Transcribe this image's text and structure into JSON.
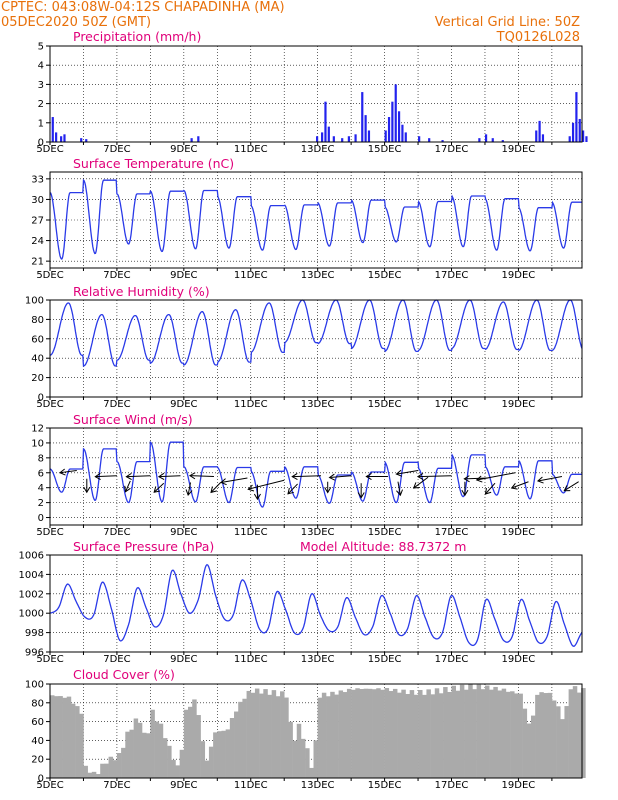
{
  "header": {
    "left_line1": "CPTEC:   043:08W-04:12S   CHAPADINHA (MA)",
    "left_line2": "05DEC2020 50Z (GMT)",
    "right_line1": "Vertical Grid Line: 50Z",
    "right_line2": "TQ0126L028"
  },
  "colors": {
    "header": "#e8700a",
    "title": "#e0007a",
    "series": "#2a3ae8",
    "bars": "#2222ee",
    "cloud": "#aaaaaa"
  },
  "chart_data": [
    {
      "type": "bar",
      "title": "Precipitation (mm/h)",
      "x": [
        "5DEC",
        "7DEC",
        "9DEC",
        "11DEC",
        "13DEC",
        "15DEC",
        "17DEC",
        "19DEC"
      ],
      "ylim": [
        0,
        5
      ],
      "yticks": [
        0,
        1,
        2,
        3,
        4,
        5
      ],
      "bars": [
        [
          0.05,
          1.3
        ],
        [
          0.15,
          0.5
        ],
        [
          0.3,
          0.3
        ],
        [
          0.4,
          0.4
        ],
        [
          0.9,
          0.2
        ],
        [
          1.05,
          0.15
        ],
        [
          4.2,
          0.2
        ],
        [
          4.4,
          0.3
        ],
        [
          7.95,
          0.3
        ],
        [
          8.1,
          0.5
        ],
        [
          8.2,
          2.1
        ],
        [
          8.3,
          0.8
        ],
        [
          8.45,
          0.3
        ],
        [
          8.7,
          0.2
        ],
        [
          8.9,
          0.3
        ],
        [
          9.1,
          0.4
        ],
        [
          9.3,
          2.6
        ],
        [
          9.4,
          1.4
        ],
        [
          9.5,
          0.6
        ],
        [
          10.0,
          0.6
        ],
        [
          10.1,
          1.3
        ],
        [
          10.2,
          2.1
        ],
        [
          10.3,
          3.0
        ],
        [
          10.4,
          1.6
        ],
        [
          10.5,
          0.9
        ],
        [
          10.6,
          0.5
        ],
        [
          11.0,
          0.3
        ],
        [
          11.3,
          0.2
        ],
        [
          11.7,
          0.1
        ],
        [
          12.8,
          0.2
        ],
        [
          13.0,
          0.4
        ],
        [
          13.2,
          0.2
        ],
        [
          13.5,
          0.1
        ],
        [
          14.5,
          0.6
        ],
        [
          14.6,
          1.1
        ],
        [
          14.7,
          0.4
        ],
        [
          15.5,
          0.3
        ],
        [
          15.6,
          1.0
        ],
        [
          15.7,
          2.6
        ],
        [
          15.8,
          1.2
        ],
        [
          15.9,
          0.6
        ],
        [
          16.0,
          0.3
        ]
      ]
    },
    {
      "type": "line",
      "title": "Surface Temperature (nC)",
      "x": [
        "5DEC",
        "7DEC",
        "9DEC",
        "11DEC",
        "13DEC",
        "15DEC",
        "17DEC",
        "19DEC"
      ],
      "ylim": [
        20,
        34
      ],
      "yticks": [
        21,
        24,
        27,
        30,
        33
      ],
      "min": [
        21.3,
        22.1,
        23.5,
        22.4,
        22.8,
        22.9,
        22.6,
        22.7,
        23.2,
        23.7,
        23.8,
        23.1,
        23.1,
        22.6,
        22.5,
        22.9
      ],
      "max": [
        31.0,
        32.8,
        30.8,
        31.2,
        31.3,
        30.4,
        29.1,
        29.2,
        29.5,
        29.9,
        28.9,
        29.7,
        30.5,
        30.1,
        28.8,
        29.6
      ]
    },
    {
      "type": "line",
      "title": "Relative Humidity (%)",
      "x": [
        "5DEC",
        "7DEC",
        "9DEC",
        "11DEC",
        "13DEC",
        "15DEC",
        "17DEC",
        "19DEC"
      ],
      "ylim": [
        0,
        100
      ],
      "yticks": [
        0,
        20,
        40,
        60,
        80,
        100
      ],
      "min": [
        43,
        32,
        38,
        35,
        33,
        36,
        46,
        56,
        55,
        50,
        47,
        48,
        50,
        49,
        48
      ],
      "max": [
        97,
        85,
        84,
        85,
        88,
        90,
        97,
        100,
        100,
        100,
        100,
        100,
        100,
        98,
        100
      ]
    },
    {
      "type": "line",
      "title": "Surface Wind (m/s)",
      "x": [
        "5DEC",
        "7DEC",
        "9DEC",
        "11DEC",
        "13DEC",
        "15DEC",
        "17DEC",
        "19DEC"
      ],
      "ylim": [
        -1,
        12
      ],
      "yticks": [
        0,
        2,
        4,
        6,
        8,
        10,
        12
      ],
      "min": [
        3.4,
        2.3,
        2.0,
        2.1,
        2.1,
        2.0,
        1.4,
        2.6,
        1.9,
        2.2,
        2.0,
        2.0,
        2.8,
        3.0,
        2.5,
        3.3
      ],
      "max": [
        6.5,
        9.2,
        7.5,
        10.1,
        6.8,
        6.7,
        6.2,
        6.8,
        5.7,
        6.1,
        7.4,
        6.6,
        8.4,
        6.8,
        7.6,
        5.8
      ],
      "vectors": [
        [
          0.8,
          6.3,
          -0.35,
          -0.12
        ],
        [
          1.1,
          5.2,
          0.0,
          -0.75
        ],
        [
          2.0,
          5.6,
          -0.45,
          -0.05
        ],
        [
          2.4,
          4.9,
          -0.1,
          -0.6
        ],
        [
          3.0,
          5.6,
          -0.5,
          -0.05
        ],
        [
          3.4,
          4.6,
          -0.2,
          -0.5
        ],
        [
          3.9,
          5.6,
          -0.45,
          -0.05
        ],
        [
          4.2,
          4.7,
          -0.05,
          -0.7
        ],
        [
          4.9,
          5.5,
          -0.5,
          0.05
        ],
        [
          5.1,
          4.7,
          -0.2,
          -0.55
        ],
        [
          5.9,
          5.3,
          -0.55,
          -0.25
        ],
        [
          6.2,
          4.4,
          0.0,
          -0.8
        ],
        [
          7.0,
          5.0,
          -0.75,
          -0.5
        ],
        [
          7.4,
          4.5,
          -0.2,
          -0.55
        ],
        [
          8.1,
          5.6,
          -0.6,
          -0.05
        ],
        [
          8.3,
          4.8,
          0.0,
          -0.6
        ],
        [
          9.0,
          5.6,
          -0.45,
          -0.1
        ],
        [
          9.3,
          4.6,
          0.0,
          -0.8
        ],
        [
          10.1,
          5.5,
          -0.45,
          0.0
        ],
        [
          10.4,
          4.8,
          0.05,
          -0.75
        ],
        [
          11.0,
          6.3,
          -0.45,
          -0.2
        ],
        [
          11.3,
          5.4,
          -0.3,
          -0.6
        ],
        [
          12.0,
          5.6,
          -0.7,
          -0.05
        ],
        [
          12.4,
          4.8,
          0.0,
          -0.75
        ],
        [
          13.1,
          5.3,
          -0.5,
          -0.05
        ],
        [
          13.3,
          4.6,
          -0.2,
          -0.6
        ],
        [
          13.9,
          6.0,
          -0.8,
          -0.4
        ],
        [
          14.3,
          4.8,
          -0.35,
          -0.35
        ],
        [
          15.3,
          5.5,
          -0.5,
          -0.25
        ],
        [
          15.8,
          4.8,
          -0.3,
          -0.5
        ]
      ]
    },
    {
      "type": "line",
      "title": "Surface Pressure (hPa)",
      "annotation": "Model Altitude: 88.7372 m",
      "x": [
        "5DEC",
        "7DEC",
        "9DEC",
        "11DEC",
        "13DEC",
        "15DEC",
        "17DEC",
        "19DEC"
      ],
      "ylim": [
        996,
        1006
      ],
      "yticks": [
        996,
        998,
        1000,
        1002,
        1004,
        1006
      ],
      "series": [
        1000.0,
        1000.6,
        1003.0,
        1001.2,
        999.6,
        999.8,
        1003.2,
        1000.6,
        997.2,
        998.8,
        1002.6,
        1000.6,
        998.6,
        999.8,
        1004.4,
        1002.0,
        1000.0,
        1001.4,
        1005.0,
        1001.8,
        999.4,
        999.8,
        1003.4,
        1001.4,
        998.4,
        998.4,
        1002.2,
        1000.4,
        998.0,
        998.4,
        1002.0,
        999.8,
        998.2,
        998.6,
        1001.6,
        999.6,
        997.8,
        998.6,
        1001.8,
        1000.0,
        997.8,
        998.4,
        1001.8,
        999.6,
        997.5,
        998.0,
        1001.8,
        999.6,
        997.0,
        997.2,
        1001.4,
        999.4,
        997.2,
        997.6,
        1001.4,
        999.2,
        997.0,
        997.6,
        1001.2,
        998.8,
        996.6,
        998.0
      ]
    },
    {
      "type": "bar",
      "title": "Cloud Cover (%)",
      "x": [
        "5DEC",
        "7DEC",
        "9DEC",
        "11DEC",
        "13DEC",
        "15DEC",
        "17DEC",
        "19DEC"
      ],
      "ylim": [
        0,
        100
      ],
      "yticks": [
        0,
        20,
        40,
        60,
        80,
        100
      ],
      "profile": [
        [
          0.0,
          88
        ],
        [
          0.5,
          88
        ],
        [
          0.9,
          72
        ],
        [
          1.0,
          14
        ],
        [
          1.3,
          5
        ],
        [
          1.6,
          18
        ],
        [
          2.0,
          22
        ],
        [
          2.3,
          48
        ],
        [
          2.6,
          62
        ],
        [
          2.8,
          36
        ],
        [
          3.0,
          68
        ],
        [
          3.3,
          52
        ],
        [
          3.55,
          28
        ],
        [
          3.8,
          10
        ],
        [
          4.0,
          74
        ],
        [
          4.3,
          88
        ],
        [
          4.6,
          18
        ],
        [
          4.9,
          52
        ],
        [
          5.2,
          48
        ],
        [
          5.5,
          70
        ],
        [
          5.8,
          86
        ],
        [
          6.0,
          90
        ],
        [
          6.5,
          90
        ],
        [
          7.0,
          90
        ],
        [
          7.2,
          40
        ],
        [
          7.4,
          60
        ],
        [
          7.6,
          35
        ],
        [
          7.8,
          10
        ],
        [
          8.0,
          90
        ],
        [
          8.5,
          90
        ],
        [
          9.0,
          92
        ],
        [
          9.5,
          92
        ],
        [
          10.0,
          94
        ],
        [
          10.5,
          94
        ],
        [
          11.0,
          94
        ],
        [
          11.5,
          94
        ],
        [
          12.0,
          94
        ],
        [
          12.5,
          94
        ],
        [
          13.0,
          94
        ],
        [
          13.5,
          94
        ],
        [
          14.0,
          92
        ],
        [
          14.3,
          55
        ],
        [
          14.5,
          92
        ],
        [
          14.8,
          94
        ],
        [
          15.0,
          85
        ],
        [
          15.3,
          60
        ],
        [
          15.5,
          95
        ],
        [
          15.8,
          90
        ],
        [
          16.0,
          90
        ]
      ]
    }
  ]
}
